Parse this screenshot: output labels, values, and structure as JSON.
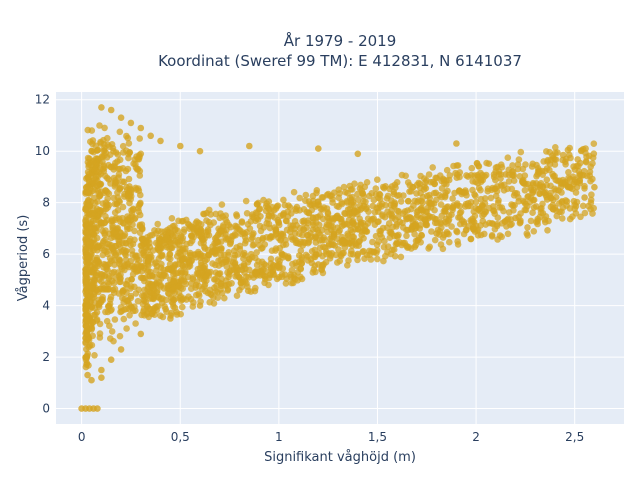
{
  "chart_data": {
    "type": "scatter",
    "title_line1": "År 1979 - 2019",
    "title_line2": "Koordinat (Sweref 99 TM): E 412831, N 6141037",
    "xlabel": "Signifikant våghöjd (m)",
    "ylabel": "Vågperiod (s)",
    "xlim": [
      -0.13,
      2.75
    ],
    "ylim": [
      -0.6,
      12.3
    ],
    "x_ticks": [
      0,
      0.5,
      1,
      1.5,
      2,
      2.5
    ],
    "x_tick_labels": [
      "0",
      "0,5",
      "1",
      "1,5",
      "2",
      "2,5"
    ],
    "y_ticks": [
      0,
      2,
      4,
      6,
      8,
      10,
      12
    ],
    "y_tick_labels": [
      "0",
      "2",
      "4",
      "6",
      "8",
      "10",
      "12"
    ],
    "marker_color": "#d4a420",
    "plot_bg": "#e5ecf6",
    "grid": true,
    "points": [
      [
        0.0,
        0.0
      ],
      [
        0.02,
        0.0
      ],
      [
        0.04,
        0.0
      ],
      [
        0.06,
        0.0
      ],
      [
        0.08,
        0.0
      ],
      [
        0.1,
        11.7
      ],
      [
        0.15,
        11.6
      ],
      [
        0.2,
        11.3
      ],
      [
        0.25,
        11.1
      ],
      [
        0.3,
        10.9
      ],
      [
        0.35,
        10.6
      ],
      [
        0.4,
        10.4
      ],
      [
        0.5,
        10.2
      ],
      [
        0.6,
        10.0
      ],
      [
        0.85,
        10.2
      ],
      [
        1.2,
        10.1
      ],
      [
        1.4,
        9.9
      ],
      [
        1.9,
        10.3
      ],
      [
        2.15,
        9.1
      ],
      [
        2.5,
        8.9
      ],
      [
        2.6,
        8.6
      ],
      [
        2.55,
        8.2
      ],
      [
        2.4,
        7.8
      ],
      [
        2.2,
        7.4
      ],
      [
        2.0,
        7.1
      ],
      [
        1.8,
        6.8
      ],
      [
        1.6,
        6.4
      ],
      [
        1.4,
        6.0
      ],
      [
        1.2,
        5.6
      ],
      [
        1.0,
        5.1
      ],
      [
        0.8,
        4.6
      ],
      [
        0.6,
        4.0
      ],
      [
        0.45,
        3.5
      ],
      [
        0.3,
        2.9
      ],
      [
        0.2,
        2.3
      ],
      [
        0.1,
        1.5
      ],
      [
        0.05,
        1.1
      ],
      [
        0.03,
        1.3
      ],
      [
        0.1,
        1.2
      ],
      [
        0.15,
        1.9
      ]
    ]
  }
}
